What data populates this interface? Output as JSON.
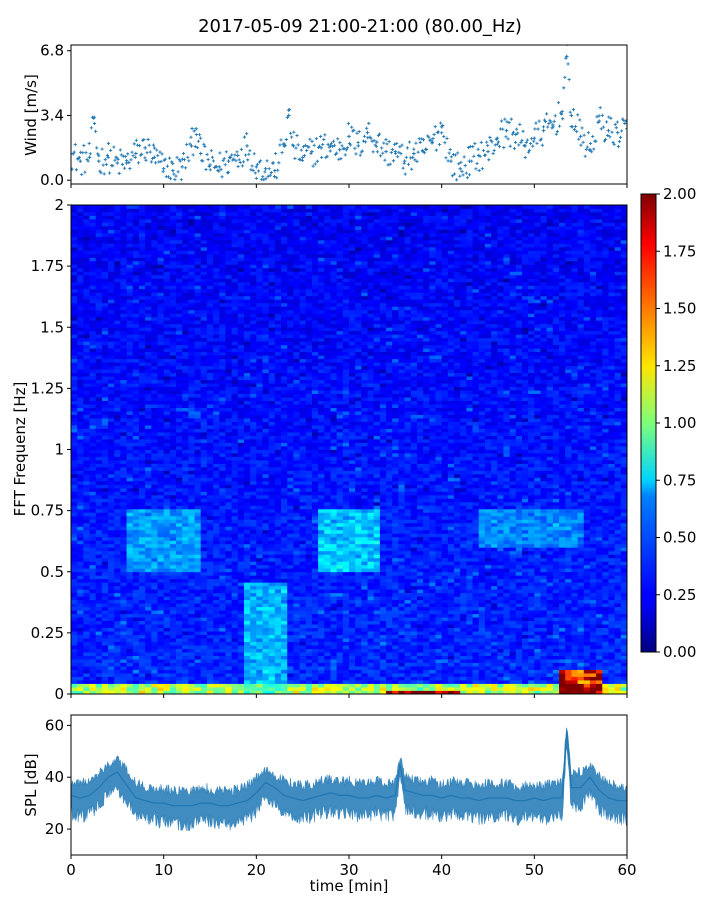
{
  "title": "2017-05-09 21:00-21:00 (80.00_Hz)",
  "colors": {
    "wind_marker": "#1f77b4",
    "spl_line": "#1f77b4",
    "colormap": "jet"
  },
  "chart_data": [
    {
      "id": "wind",
      "type": "scatter",
      "title": "",
      "ylabel": "Wind [m/s]",
      "xlabel": "",
      "xlim": [
        0,
        60
      ],
      "ylim": [
        -0.2,
        7.1
      ],
      "yticks": [
        0.0,
        3.4,
        6.8
      ],
      "ytick_labels": [
        "0.0",
        "3.4",
        "6.8"
      ],
      "xticks": [
        0,
        10,
        20,
        30,
        40,
        50,
        60
      ],
      "grid": false,
      "marker": "+",
      "series": [
        {
          "x": [
            0,
            1,
            2,
            2.5,
            3,
            4,
            5,
            6,
            7,
            8,
            9,
            10,
            11,
            12,
            13,
            13.5,
            14,
            15,
            16,
            17,
            18,
            19,
            20,
            21,
            22,
            23,
            23.5,
            24,
            25,
            26,
            27,
            28,
            29,
            30,
            31,
            32,
            33,
            34,
            35,
            36,
            37,
            38,
            39,
            40,
            41,
            42,
            43,
            44,
            45,
            46,
            47,
            48,
            49,
            50,
            51,
            52,
            53,
            53.5,
            54,
            55,
            56,
            57,
            58,
            59,
            60
          ],
          "y": [
            1.4,
            1.0,
            1.2,
            3.3,
            1.0,
            1.2,
            0.9,
            0.9,
            1.4,
            1.7,
            1.2,
            0.6,
            0.5,
            0.7,
            1.8,
            2.7,
            1.4,
            0.8,
            0.7,
            1.0,
            1.3,
            1.8,
            0.7,
            0.6,
            0.5,
            1.9,
            3.4,
            1.8,
            1.2,
            1.5,
            1.7,
            1.8,
            1.6,
            2.3,
            1.8,
            2.5,
            2.0,
            1.5,
            1.5,
            1.0,
            1.4,
            1.5,
            2.0,
            2.8,
            1.0,
            0.6,
            1.0,
            1.3,
            1.5,
            2.2,
            2.6,
            2.4,
            1.8,
            2.2,
            2.6,
            2.9,
            3.6,
            6.5,
            3.4,
            2.3,
            1.6,
            3.1,
            2.6,
            2.5,
            2.7
          ]
        }
      ]
    },
    {
      "id": "spectrogram",
      "type": "heatmap",
      "title": "",
      "ylabel": "FFT Frequenz [Hz]",
      "xlabel": "",
      "xlim": [
        0,
        60
      ],
      "ylim": [
        0,
        2
      ],
      "yticks": [
        0,
        0.25,
        0.5,
        0.75,
        1,
        1.25,
        1.5,
        1.75,
        2
      ],
      "ytick_labels": [
        "0",
        "0.25",
        "0.5",
        "0.75",
        "1",
        "1.25",
        "1.5",
        "1.75",
        "2"
      ],
      "xticks": [
        0,
        10,
        20,
        30,
        40,
        50,
        60
      ],
      "colorbar": {
        "vmin": 0.0,
        "vmax": 2.0,
        "ticks": [
          0.0,
          0.25,
          0.5,
          0.75,
          1.0,
          1.25,
          1.5,
          1.75,
          2.0
        ],
        "tick_labels": [
          "0.00",
          "0.25",
          "0.50",
          "0.75",
          "1.00",
          "1.25",
          "1.50",
          "1.75",
          "2.00"
        ]
      },
      "features": [
        {
          "t": [
            0,
            60
          ],
          "f": [
            0.0,
            0.04
          ],
          "value": 1.2
        },
        {
          "t": [
            34,
            42
          ],
          "f": [
            0.0,
            0.02
          ],
          "value": 2.0
        },
        {
          "t": [
            53,
            57
          ],
          "f": [
            0.0,
            0.1
          ],
          "value": 2.0
        },
        {
          "t": [
            19,
            23
          ],
          "f": [
            0.0,
            0.45
          ],
          "value": 0.6
        },
        {
          "t": [
            6,
            14
          ],
          "f": [
            0.5,
            0.75
          ],
          "value": 0.55
        },
        {
          "t": [
            27,
            33
          ],
          "f": [
            0.5,
            0.75
          ],
          "value": 0.65
        },
        {
          "t": [
            44,
            55
          ],
          "f": [
            0.6,
            0.75
          ],
          "value": 0.5
        }
      ],
      "grid": false
    },
    {
      "id": "spl",
      "type": "line",
      "title": "",
      "ylabel": "SPL [dB]",
      "xlabel": "time [min]",
      "xlim": [
        0,
        60
      ],
      "ylim": [
        10,
        64
      ],
      "yticks": [
        20,
        40,
        60
      ],
      "ytick_labels": [
        "20",
        "40",
        "60"
      ],
      "xticks": [
        0,
        10,
        20,
        30,
        40,
        50,
        60
      ],
      "xtick_labels": [
        "0",
        "10",
        "20",
        "30",
        "40",
        "50",
        "60"
      ],
      "grid": false,
      "series": [
        {
          "x": [
            0,
            1,
            2,
            3,
            4,
            5,
            6,
            7,
            8,
            9,
            10,
            11,
            12,
            13,
            14,
            15,
            16,
            17,
            18,
            19,
            20,
            21,
            22,
            23,
            24,
            25,
            26,
            27,
            28,
            29,
            30,
            31,
            32,
            33,
            34,
            35,
            35.5,
            36,
            37,
            38,
            39,
            40,
            41,
            42,
            43,
            44,
            45,
            46,
            47,
            48,
            49,
            50,
            51,
            52,
            53,
            53.5,
            54,
            55,
            56,
            57,
            58,
            59,
            60
          ],
          "y": [
            33,
            32,
            33,
            36,
            40,
            42,
            37,
            32,
            31,
            30,
            30,
            29,
            29,
            29,
            30,
            30,
            29,
            29,
            30,
            31,
            34,
            38,
            36,
            33,
            32,
            31,
            32,
            33,
            34,
            33,
            33,
            32,
            32,
            33,
            32,
            33,
            45,
            35,
            34,
            33,
            33,
            32,
            33,
            32,
            32,
            31,
            32,
            32,
            32,
            31,
            31,
            32,
            31,
            32,
            32,
            58,
            36,
            36,
            40,
            35,
            32,
            31,
            31
          ],
          "spread": [
            7,
            7,
            7,
            7,
            6,
            6,
            7,
            7,
            7,
            7,
            7,
            7,
            7,
            7,
            7,
            7,
            7,
            7,
            7,
            7,
            7,
            6,
            6,
            7,
            7,
            7,
            7,
            7,
            7,
            7,
            7,
            7,
            7,
            7,
            7,
            7,
            4,
            7,
            7,
            7,
            7,
            7,
            7,
            7,
            7,
            7,
            7,
            7,
            7,
            7,
            7,
            7,
            7,
            7,
            7,
            4,
            8,
            7,
            6,
            7,
            7,
            7,
            7
          ]
        }
      ]
    }
  ]
}
